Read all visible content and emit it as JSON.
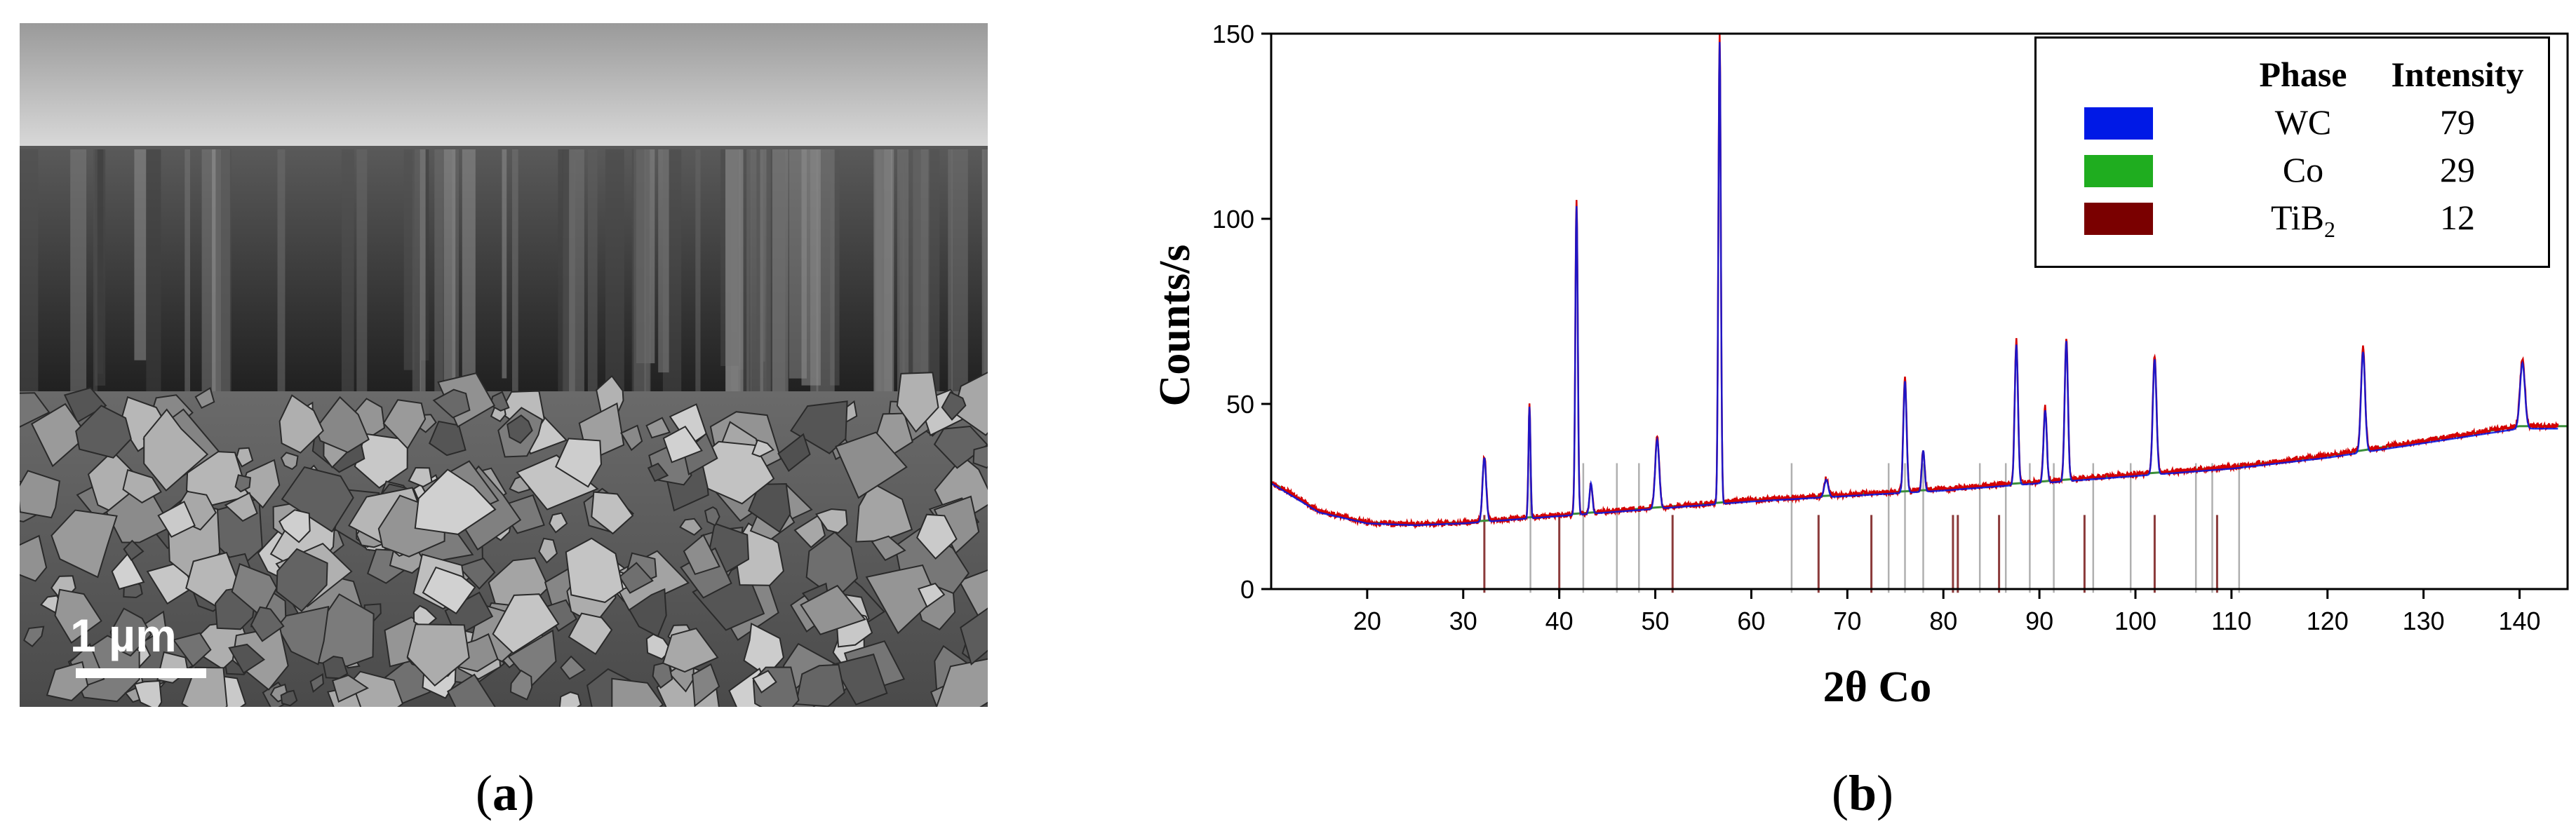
{
  "panel_a": {
    "scale_label": "1 µm",
    "caption_open": "(",
    "caption_letter": "a",
    "caption_close": ")"
  },
  "panel_b": {
    "caption_open": "(",
    "caption_letter": "b",
    "caption_close": ")"
  },
  "colors": {
    "wc": "#0019e6",
    "co": "#1fad1f",
    "tib2": "#7a0000",
    "measured": "#d40000",
    "background_fit": "#3a8f3a",
    "reference_ticks": "#b0b0b0"
  },
  "chart_data": {
    "type": "line",
    "xlabel": "2θ Co",
    "ylabel": "Counts/s",
    "xlim": [
      10,
      145
    ],
    "ylim": [
      0,
      150
    ],
    "x_ticks": [
      "20",
      "30",
      "40",
      "50",
      "60",
      "70",
      "80",
      "90",
      "100",
      "110",
      "120",
      "130",
      "140"
    ],
    "y_ticks": [
      "0",
      "50",
      "100",
      "150"
    ],
    "legend": {
      "position": "top-right",
      "header_phase": "Phase",
      "header_intensity": "Intensity",
      "entries": [
        {
          "phase": "WC",
          "intensity": "79",
          "color": "#0019e6"
        },
        {
          "phase": "Co",
          "intensity": "29",
          "color": "#1fad1f"
        },
        {
          "phase": "TiB",
          "sub": "2",
          "intensity": "12",
          "color": "#7a0000"
        }
      ]
    },
    "background_curve": [
      [
        10,
        29
      ],
      [
        15,
        21
      ],
      [
        20,
        18
      ],
      [
        25,
        17.5
      ],
      [
        30,
        18
      ],
      [
        40,
        20
      ],
      [
        50,
        22
      ],
      [
        60,
        24
      ],
      [
        70,
        25.5
      ],
      [
        80,
        27
      ],
      [
        90,
        29
      ],
      [
        100,
        31
      ],
      [
        110,
        33
      ],
      [
        120,
        36
      ],
      [
        130,
        40
      ],
      [
        140,
        44
      ]
    ],
    "peaks": [
      {
        "x": 32.2,
        "height": 36,
        "width": 0.45
      },
      {
        "x": 36.9,
        "height": 50,
        "width": 0.25
      },
      {
        "x": 41.8,
        "height": 105,
        "width": 0.3
      },
      {
        "x": 43.3,
        "height": 29,
        "width": 0.35
      },
      {
        "x": 50.2,
        "height": 41,
        "width": 0.5
      },
      {
        "x": 56.7,
        "height": 150,
        "width": 0.3
      },
      {
        "x": 67.8,
        "height": 30,
        "width": 0.5
      },
      {
        "x": 76.0,
        "height": 57,
        "width": 0.4
      },
      {
        "x": 77.9,
        "height": 38,
        "width": 0.35
      },
      {
        "x": 87.6,
        "height": 67,
        "width": 0.4
      },
      {
        "x": 90.6,
        "height": 49,
        "width": 0.4
      },
      {
        "x": 92.8,
        "height": 68,
        "width": 0.4
      },
      {
        "x": 102.0,
        "height": 63,
        "width": 0.45
      },
      {
        "x": 123.7,
        "height": 65,
        "width": 0.5
      },
      {
        "x": 140.3,
        "height": 62,
        "width": 0.6
      }
    ],
    "reference_ticks": [
      {
        "x": 32.2,
        "phase": "WC"
      },
      {
        "x": 37.0,
        "phase": "other"
      },
      {
        "x": 40.0,
        "phase": "WC"
      },
      {
        "x": 42.5,
        "phase": "other"
      },
      {
        "x": 46.0,
        "phase": "other"
      },
      {
        "x": 48.3,
        "phase": "other"
      },
      {
        "x": 51.8,
        "phase": "WC"
      },
      {
        "x": 64.2,
        "phase": "other"
      },
      {
        "x": 67.0,
        "phase": "WC"
      },
      {
        "x": 72.5,
        "phase": "WC"
      },
      {
        "x": 74.3,
        "phase": "other"
      },
      {
        "x": 76.0,
        "phase": "other"
      },
      {
        "x": 77.9,
        "phase": "other"
      },
      {
        "x": 81.0,
        "phase": "WC"
      },
      {
        "x": 81.5,
        "phase": "WC"
      },
      {
        "x": 83.8,
        "phase": "other"
      },
      {
        "x": 85.8,
        "phase": "WC"
      },
      {
        "x": 86.5,
        "phase": "other"
      },
      {
        "x": 89.0,
        "phase": "other"
      },
      {
        "x": 91.5,
        "phase": "other"
      },
      {
        "x": 94.7,
        "phase": "WC"
      },
      {
        "x": 95.6,
        "phase": "other"
      },
      {
        "x": 99.5,
        "phase": "other"
      },
      {
        "x": 102.0,
        "phase": "WC"
      },
      {
        "x": 106.3,
        "phase": "other"
      },
      {
        "x": 108.0,
        "phase": "other"
      },
      {
        "x": 108.5,
        "phase": "WC"
      },
      {
        "x": 110.8,
        "phase": "other"
      }
    ]
  }
}
